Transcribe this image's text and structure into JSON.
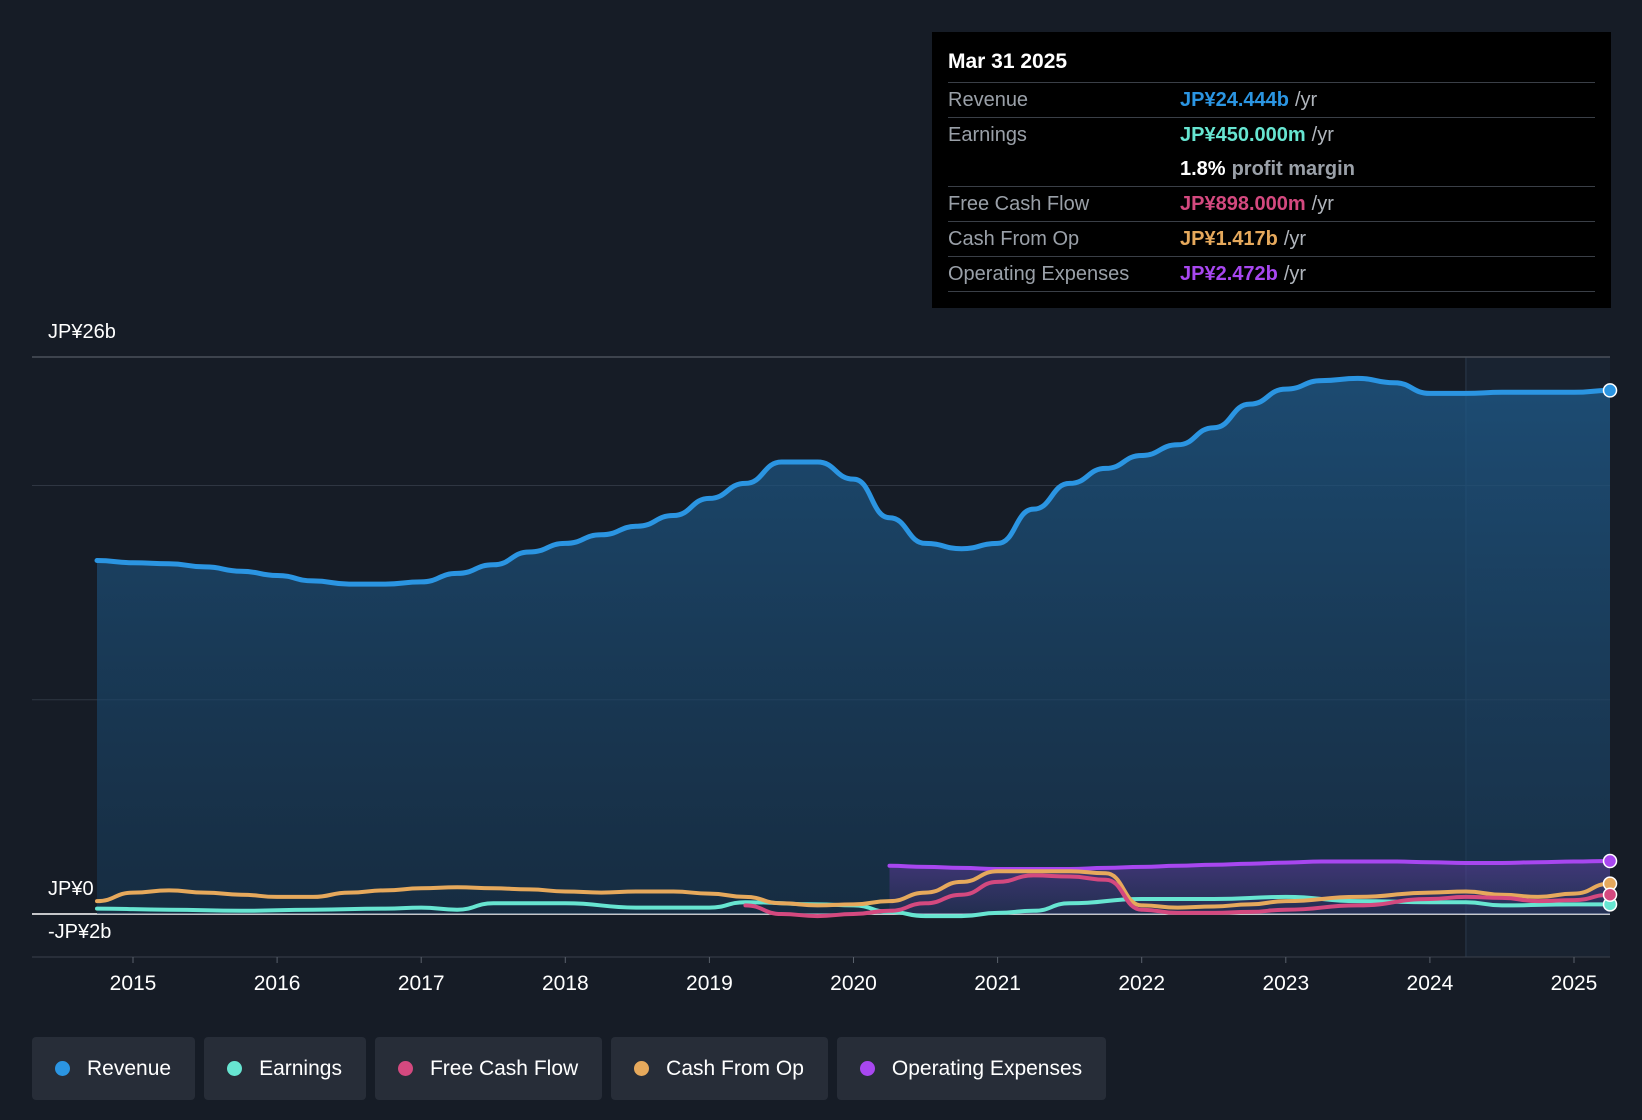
{
  "colors": {
    "revenue": "#2b95e2",
    "earnings": "#67e5d1",
    "fcf": "#d4497f",
    "cfo": "#e6a95c",
    "opex": "#a847f0",
    "background": "#161c26"
  },
  "tooltip": {
    "date": "Mar 31 2025",
    "rows": [
      {
        "label": "Revenue",
        "value": "JP¥24.444b",
        "unit": "/yr"
      },
      {
        "label": "Earnings",
        "value": "JP¥450.000m",
        "unit": "/yr"
      },
      {
        "margin_value": "1.8%",
        "margin_text": "profit margin"
      },
      {
        "label": "Free Cash Flow",
        "value": "JP¥898.000m",
        "unit": "/yr"
      },
      {
        "label": "Cash From Op",
        "value": "JP¥1.417b",
        "unit": "/yr"
      },
      {
        "label": "Operating Expenses",
        "value": "JP¥2.472b",
        "unit": "/yr"
      }
    ]
  },
  "legend": [
    {
      "label": "Revenue",
      "color": "#2b95e2"
    },
    {
      "label": "Earnings",
      "color": "#67e5d1"
    },
    {
      "label": "Free Cash Flow",
      "color": "#d4497f"
    },
    {
      "label": "Cash From Op",
      "color": "#e6a95c"
    },
    {
      "label": "Operating Expenses",
      "color": "#a847f0"
    }
  ],
  "chart_data": {
    "type": "line",
    "title": "",
    "xlabel": "",
    "ylabel": "",
    "y_axis_labels": {
      "top": "JP¥26b",
      "zero": "JP¥0",
      "bottom": "-JP¥2b"
    },
    "ylim": [
      -2,
      26
    ],
    "xlim": [
      2014.75,
      2025.25
    ],
    "x_ticks": [
      2015,
      2016,
      2017,
      2018,
      2019,
      2020,
      2021,
      2022,
      2023,
      2024,
      2025
    ],
    "highlight_start": 2024.25,
    "series": [
      {
        "name": "Revenue",
        "key": "revenue",
        "fill": true,
        "x": [
          2014.75,
          2015.0,
          2015.25,
          2015.5,
          2015.75,
          2016.0,
          2016.25,
          2016.5,
          2016.75,
          2017.0,
          2017.25,
          2017.5,
          2017.75,
          2018.0,
          2018.25,
          2018.5,
          2018.75,
          2019.0,
          2019.25,
          2019.5,
          2019.75,
          2020.0,
          2020.25,
          2020.5,
          2020.75,
          2021.0,
          2021.25,
          2021.5,
          2021.75,
          2022.0,
          2022.25,
          2022.5,
          2022.75,
          2023.0,
          2023.25,
          2023.5,
          2023.75,
          2024.0,
          2024.25,
          2024.5,
          2024.75,
          2025.0,
          2025.25
        ],
        "y": [
          16.5,
          16.4,
          16.35,
          16.2,
          16.0,
          15.8,
          15.55,
          15.4,
          15.4,
          15.5,
          15.9,
          16.3,
          16.9,
          17.3,
          17.7,
          18.1,
          18.6,
          19.4,
          20.1,
          21.1,
          21.1,
          20.3,
          18.5,
          17.3,
          17.05,
          17.3,
          18.9,
          20.1,
          20.8,
          21.4,
          21.9,
          22.7,
          23.8,
          24.5,
          24.9,
          25.0,
          24.8,
          24.3,
          24.3,
          24.35,
          24.35,
          24.35,
          24.44
        ]
      },
      {
        "name": "Earnings",
        "key": "earnings",
        "fill": false,
        "x": [
          2014.75,
          2015.25,
          2015.75,
          2016.25,
          2016.75,
          2017.0,
          2017.25,
          2017.5,
          2018.0,
          2018.5,
          2019.0,
          2019.25,
          2019.75,
          2020.0,
          2020.25,
          2020.5,
          2020.75,
          2021.0,
          2021.25,
          2021.5,
          2022.0,
          2022.5,
          2023.0,
          2023.5,
          2024.0,
          2024.25,
          2024.5,
          2025.0,
          2025.25
        ],
        "y": [
          0.25,
          0.2,
          0.15,
          0.2,
          0.25,
          0.3,
          0.2,
          0.5,
          0.5,
          0.3,
          0.3,
          0.55,
          0.45,
          0.4,
          0.1,
          -0.1,
          -0.1,
          0.05,
          0.15,
          0.5,
          0.7,
          0.7,
          0.8,
          0.6,
          0.55,
          0.55,
          0.4,
          0.45,
          0.45
        ]
      },
      {
        "name": "Free Cash Flow",
        "key": "fcf",
        "fill": false,
        "x": [
          2019.25,
          2019.5,
          2019.75,
          2020.0,
          2020.25,
          2020.5,
          2020.75,
          2021.0,
          2021.25,
          2021.5,
          2021.75,
          2022.0,
          2022.25,
          2022.5,
          2022.75,
          2023.0,
          2023.5,
          2024.0,
          2024.25,
          2024.5,
          2024.75,
          2025.0,
          2025.25
        ],
        "y": [
          0.4,
          0.0,
          -0.1,
          0.0,
          0.15,
          0.5,
          0.9,
          1.5,
          1.8,
          1.75,
          1.6,
          0.2,
          0.05,
          0.05,
          0.1,
          0.2,
          0.4,
          0.7,
          0.8,
          0.75,
          0.6,
          0.65,
          0.9
        ]
      },
      {
        "name": "Cash From Op",
        "key": "cfo",
        "fill": false,
        "x": [
          2014.75,
          2015.0,
          2015.25,
          2015.5,
          2015.75,
          2016.0,
          2016.25,
          2016.5,
          2016.75,
          2017.0,
          2017.25,
          2017.5,
          2017.75,
          2018.0,
          2018.25,
          2018.5,
          2018.75,
          2019.0,
          2019.25,
          2019.5,
          2019.75,
          2020.0,
          2020.25,
          2020.5,
          2020.75,
          2021.0,
          2021.25,
          2021.5,
          2021.75,
          2022.0,
          2022.25,
          2022.5,
          2022.75,
          2023.0,
          2023.5,
          2024.0,
          2024.25,
          2024.5,
          2024.75,
          2025.0,
          2025.25
        ],
        "y": [
          0.6,
          1.0,
          1.1,
          1.0,
          0.9,
          0.8,
          0.8,
          1.0,
          1.1,
          1.2,
          1.25,
          1.2,
          1.15,
          1.05,
          1.0,
          1.05,
          1.05,
          0.95,
          0.8,
          0.5,
          0.4,
          0.45,
          0.6,
          1.0,
          1.5,
          2.0,
          2.0,
          2.0,
          1.9,
          0.4,
          0.3,
          0.35,
          0.45,
          0.6,
          0.8,
          1.0,
          1.05,
          0.9,
          0.8,
          0.95,
          1.417
        ]
      },
      {
        "name": "Operating Expenses",
        "key": "opex",
        "fill": true,
        "x": [
          2020.25,
          2020.5,
          2020.75,
          2021.0,
          2021.25,
          2021.5,
          2021.75,
          2022.0,
          2022.25,
          2022.5,
          2022.75,
          2023.0,
          2023.25,
          2023.5,
          2023.75,
          2024.0,
          2024.25,
          2024.5,
          2024.75,
          2025.0,
          2025.25
        ],
        "y": [
          2.25,
          2.2,
          2.15,
          2.1,
          2.1,
          2.1,
          2.15,
          2.2,
          2.25,
          2.3,
          2.35,
          2.4,
          2.45,
          2.45,
          2.45,
          2.42,
          2.38,
          2.38,
          2.42,
          2.45,
          2.472
        ]
      }
    ]
  }
}
